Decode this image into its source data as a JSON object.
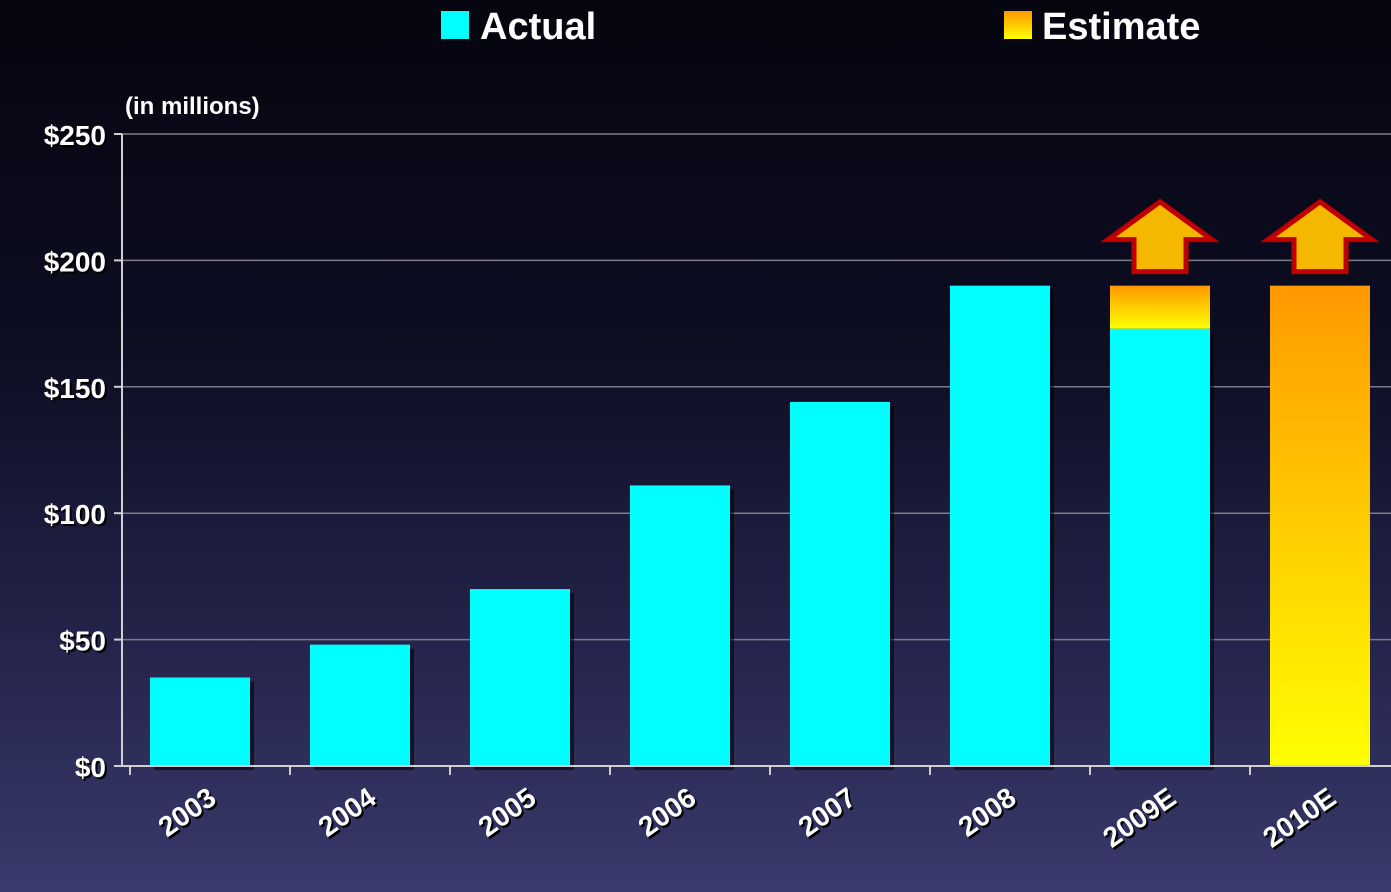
{
  "chart_data": {
    "type": "bar",
    "categories": [
      "2003",
      "2004",
      "2005",
      "2006",
      "2007",
      "2008",
      "2009E",
      "2010E"
    ],
    "series": [
      {
        "name": "Actual",
        "values": [
          35,
          48,
          70,
          111,
          144,
          190,
          173,
          0
        ]
      },
      {
        "name": "Estimate",
        "values": [
          0,
          0,
          0,
          0,
          0,
          0,
          17,
          190
        ]
      }
    ],
    "up_arrows": [
      "2009E",
      "2010E"
    ],
    "unit_note": "(in millions)",
    "yticks": [
      "$0",
      "$50",
      "$100",
      "$150",
      "$200",
      "$250"
    ],
    "ylim": [
      0,
      250
    ],
    "stacked": true,
    "legend_position": "top",
    "grid": true,
    "colors": {
      "Actual": "#00ffff",
      "Estimate_top": "#ff9900",
      "Estimate_bottom": "#ffff00",
      "arrow_fill": "#f5b800",
      "arrow_stroke": "#c00000"
    }
  }
}
